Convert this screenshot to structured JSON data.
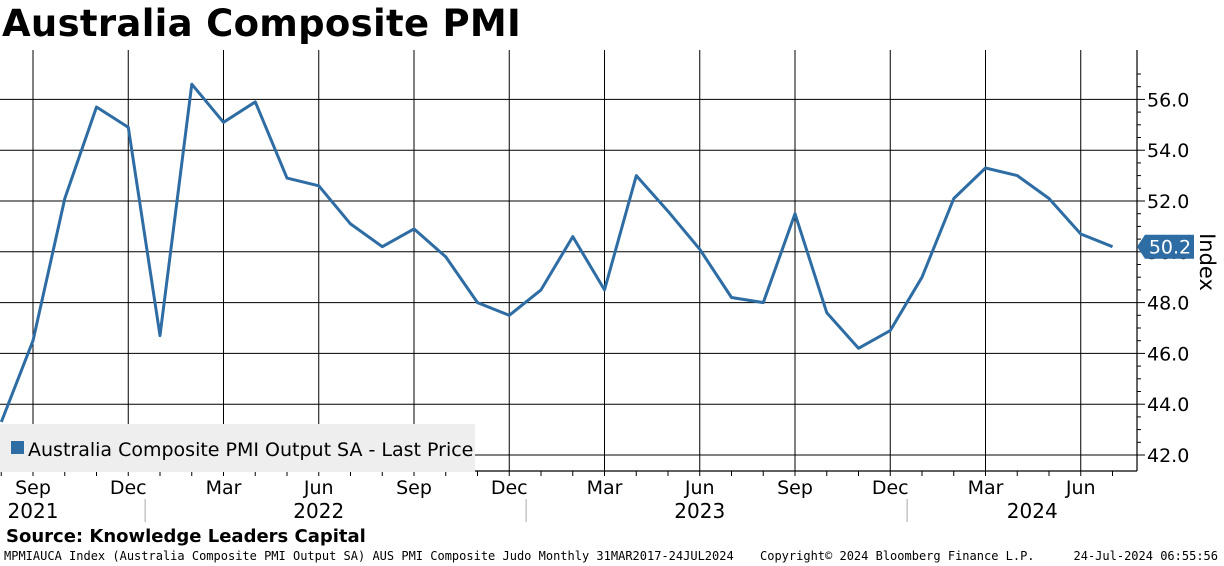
{
  "title": "Australia Composite PMI",
  "source": "Source: Knowledge Leaders Capital",
  "footer": {
    "left": "MPMIAUCA Index (Australia Composite PMI Output SA) AUS PMI Composite Judo  Monthly 31MAR2017-24JUL2024",
    "middle": "Copyright© 2024 Bloomberg Finance L.P.",
    "right": "24-Jul-2024 06:55:56"
  },
  "colors": {
    "series": "#2e6ca4",
    "grid": "#000000",
    "legend_bg": "#eeeeee"
  },
  "chart_data": {
    "type": "line",
    "title": "Australia Composite PMI",
    "ylabel": "Index",
    "ylim": [
      41.5,
      57.9
    ],
    "yticks": [
      "42.0",
      "44.0",
      "46.0",
      "48.0",
      "50.0",
      "52.0",
      "54.0",
      "56.0"
    ],
    "ytick_values": [
      42,
      44,
      46,
      48,
      50,
      52,
      54,
      56
    ],
    "grid": true,
    "legend_position": "bottom-left",
    "x_month_labels": [
      "Sep",
      "Dec",
      "Mar",
      "Jun",
      "Sep",
      "Dec",
      "Mar",
      "Jun",
      "Sep",
      "Dec",
      "Mar",
      "Jun"
    ],
    "x_month_positions": [
      "2021-09",
      "2021-12",
      "2022-03",
      "2022-06",
      "2022-09",
      "2022-12",
      "2023-03",
      "2023-06",
      "2023-09",
      "2023-12",
      "2024-03",
      "2024-06"
    ],
    "x_year_labels": [
      "2021",
      "2022",
      "2023",
      "2024"
    ],
    "x_year_positions": [
      "2021-09",
      "2022-06",
      "2023-06",
      "2024-04"
    ],
    "x_start": "2021-08",
    "x_end": "2024-07",
    "series": [
      {
        "name": "Australia Composite PMI Output SA - Last Price",
        "last_value": "50.2",
        "x": [
          "2021-08",
          "2021-09",
          "2021-10",
          "2021-11",
          "2021-12",
          "2022-01",
          "2022-02",
          "2022-03",
          "2022-04",
          "2022-05",
          "2022-06",
          "2022-07",
          "2022-08",
          "2022-09",
          "2022-10",
          "2022-11",
          "2022-12",
          "2023-01",
          "2023-02",
          "2023-03",
          "2023-04",
          "2023-05",
          "2023-06",
          "2023-07",
          "2023-08",
          "2023-09",
          "2023-10",
          "2023-11",
          "2023-12",
          "2024-01",
          "2024-02",
          "2024-03",
          "2024-04",
          "2024-05",
          "2024-06",
          "2024-07"
        ],
        "values": [
          43.3,
          46.5,
          52.1,
          55.7,
          54.9,
          46.7,
          56.6,
          55.1,
          55.9,
          52.9,
          52.6,
          51.1,
          50.2,
          50.9,
          49.8,
          48.0,
          47.5,
          48.5,
          50.6,
          48.5,
          53.0,
          51.6,
          50.1,
          48.2,
          48.0,
          51.5,
          47.6,
          46.2,
          46.9,
          49.0,
          52.1,
          53.3,
          53.0,
          52.1,
          50.7,
          50.2
        ]
      }
    ]
  }
}
